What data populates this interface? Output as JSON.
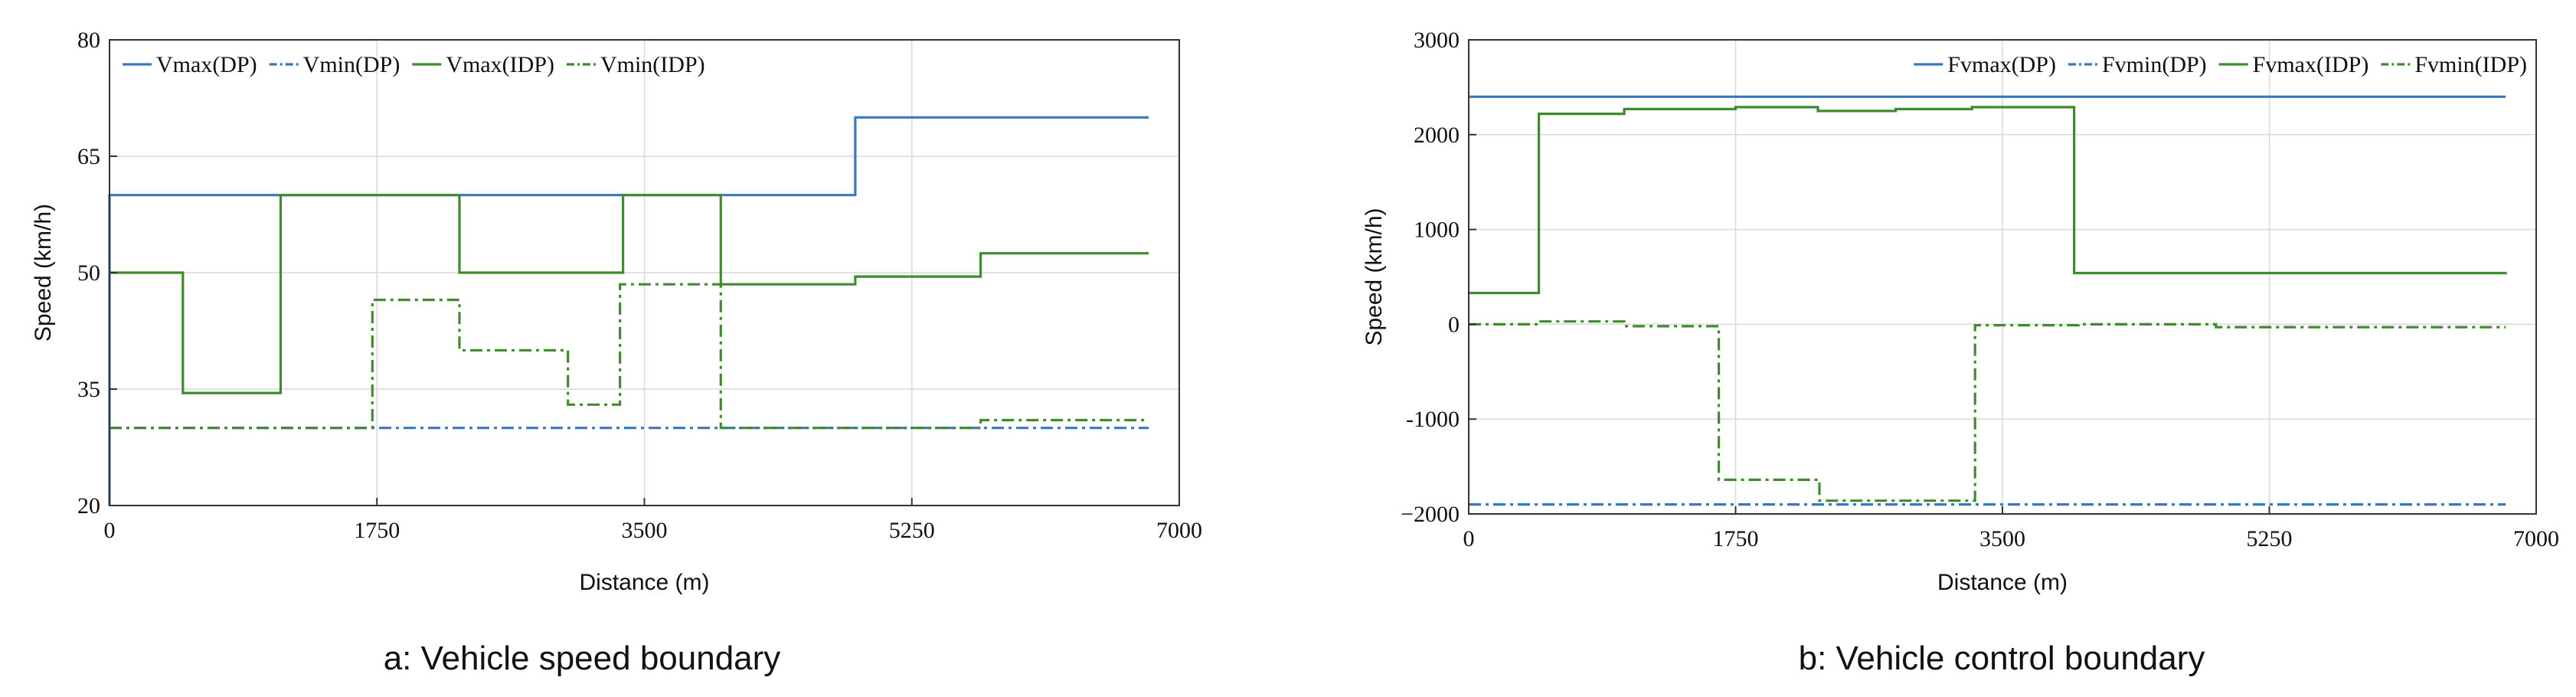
{
  "colors": {
    "dp": "#3a78bd",
    "idp": "#3e8c2e",
    "grid": "#d9d9d9",
    "axis": "#333333"
  },
  "chart_data": [
    {
      "type": "line",
      "caption": "a: Vehicle speed boundary",
      "title": "",
      "xlabel": "Distance (m)",
      "ylabel": "Speed (km/h)",
      "xlim": [
        0,
        7000
      ],
      "ylim": [
        20,
        80
      ],
      "xticks": [
        0,
        1750,
        3500,
        5250,
        7000
      ],
      "xtick_labels": [
        "0",
        "1750",
        "3500",
        "5250",
        "7000"
      ],
      "yticks": [
        20,
        35,
        50,
        65,
        80
      ],
      "ytick_labels": [
        "20",
        "35",
        "50",
        "65",
        "80"
      ],
      "grid": true,
      "legend_position": "top-left",
      "step": true,
      "series": [
        {
          "name": "Vmax(DP)",
          "color": "#3a78bd",
          "style": "solid",
          "x": [
            0,
            0,
            4880,
            6800
          ],
          "y": [
            20,
            60,
            70,
            70
          ]
        },
        {
          "name": "Vmin(DP)",
          "color": "#3a78bd",
          "style": "dashdot",
          "x": [
            0,
            5700,
            6800
          ],
          "y": [
            30,
            30,
            30
          ]
        },
        {
          "name": "Vmax(IDP)",
          "color": "#3e8c2e",
          "style": "solid",
          "x": [
            0,
            480,
            1120,
            2290,
            3360,
            4000,
            4880,
            5700,
            6800
          ],
          "y": [
            50,
            34.5,
            60,
            50,
            60,
            48.5,
            49.5,
            52.5,
            52.5
          ]
        },
        {
          "name": "Vmin(IDP)",
          "color": "#3e8c2e",
          "style": "dashdot",
          "x": [
            0,
            1720,
            2290,
            3000,
            3340,
            4000,
            5700,
            6800
          ],
          "y": [
            30,
            46.5,
            40,
            33,
            48.5,
            30,
            31,
            31
          ]
        }
      ]
    },
    {
      "type": "line",
      "caption": "b: Vehicle control boundary",
      "title": "",
      "xlabel": "Distance (m)",
      "ylabel": "Speed (km/h)",
      "xlim": [
        0,
        7000
      ],
      "ylim": [
        -2000,
        3000
      ],
      "xticks": [
        0,
        1750,
        3500,
        5250,
        7000
      ],
      "xtick_labels": [
        "0",
        "1750",
        "3500",
        "5250",
        "7000"
      ],
      "yticks": [
        -2000,
        -1000,
        0,
        1000,
        2000,
        3000
      ],
      "ytick_labels": [
        "−2000",
        "-1000",
        "0",
        "1000",
        "2000",
        "3000"
      ],
      "grid": true,
      "legend_position": "top-right",
      "step": true,
      "series": [
        {
          "name": "Fvmax(DP)",
          "color": "#3a78bd",
          "style": "solid",
          "x": [
            0,
            6800
          ],
          "y": [
            2400,
            2400
          ]
        },
        {
          "name": "Fvmin(DP)",
          "color": "#3a78bd",
          "style": "dashdot",
          "x": [
            0,
            6800
          ],
          "y": [
            -1900,
            -1900
          ]
        },
        {
          "name": "Fvmax(IDP)",
          "color": "#3e8c2e",
          "style": "solid",
          "x": [
            0,
            460,
            1020,
            1750,
            2290,
            2800,
            3300,
            3970,
            6800
          ],
          "y": [
            330,
            2220,
            2270,
            2290,
            2250,
            2270,
            2290,
            540,
            550
          ]
        },
        {
          "name": "Fvmin(IDP)",
          "color": "#3e8c2e",
          "style": "dashdot",
          "x": [
            0,
            460,
            1020,
            1640,
            2300,
            3320,
            4000,
            4900,
            6800
          ],
          "y": [
            0,
            30,
            -20,
            -1640,
            -1860,
            -10,
            0,
            -30,
            -30
          ]
        }
      ]
    }
  ]
}
